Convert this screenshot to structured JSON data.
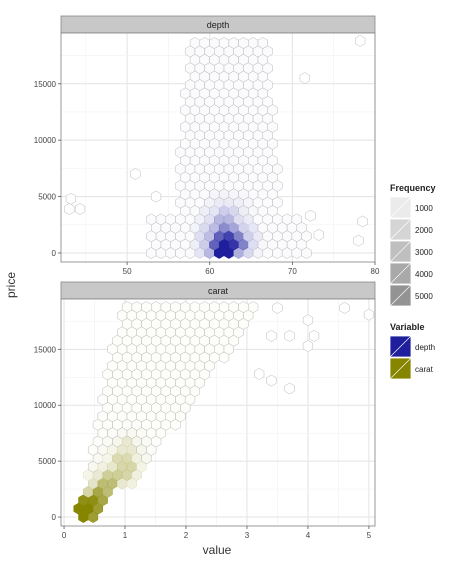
{
  "chart_data": {
    "type": "heatmap",
    "subtype": "hexbin",
    "facets": [
      {
        "name": "depth",
        "color": "#1f1f9e",
        "xlim": [
          42,
          80
        ],
        "ylim": [
          -800,
          19500
        ],
        "xticks": [
          50,
          60,
          70,
          80
        ],
        "yticks": [
          0,
          5000,
          10000,
          15000
        ],
        "yticklabels": [
          "0",
          "5000",
          "10000",
          "15000"
        ],
        "hot_cells": [
          {
            "x": 61.7,
            "y": 400,
            "count": 5000
          },
          {
            "x": 62.2,
            "y": 400,
            "count": 4500
          },
          {
            "x": 61.2,
            "y": 1200,
            "count": 3500
          },
          {
            "x": 62.2,
            "y": 1200,
            "count": 4200
          },
          {
            "x": 63.2,
            "y": 1200,
            "count": 2800
          },
          {
            "x": 61.7,
            "y": 2000,
            "count": 2600
          },
          {
            "x": 62.7,
            "y": 2000,
            "count": 2000
          },
          {
            "x": 60.7,
            "y": 2000,
            "count": 1300
          },
          {
            "x": 61.2,
            "y": 2800,
            "count": 1500
          },
          {
            "x": 62.2,
            "y": 2800,
            "count": 1600
          },
          {
            "x": 61.7,
            "y": 3600,
            "count": 1100
          },
          {
            "x": 62.7,
            "y": 3600,
            "count": 900
          }
        ],
        "outliers": [
          {
            "x": 43.2,
            "y": 4800
          },
          {
            "x": 43.0,
            "y": 3900
          },
          {
            "x": 44.3,
            "y": 3900
          },
          {
            "x": 51.0,
            "y": 7000
          },
          {
            "x": 53.5,
            "y": 5000
          },
          {
            "x": 78.2,
            "y": 18800
          },
          {
            "x": 78.5,
            "y": 2800
          },
          {
            "x": 78.0,
            "y": 1100
          },
          {
            "x": 71.5,
            "y": 15500
          },
          {
            "x": 72.2,
            "y": 3300
          },
          {
            "x": 73.2,
            "y": 1600
          }
        ]
      },
      {
        "name": "carat",
        "color": "#858500",
        "xlim": [
          -0.05,
          5.1
        ],
        "ylim": [
          -800,
          19500
        ],
        "xticks": [
          0,
          1,
          2,
          3,
          4,
          5
        ],
        "yticks": [
          0,
          5000,
          10000,
          15000
        ],
        "yticklabels": [
          "0",
          "5000",
          "10000",
          "15000"
        ],
        "hot_cells": [
          {
            "x": 0.3,
            "y": 500,
            "count": 5000
          },
          {
            "x": 0.38,
            "y": 1100,
            "count": 4600
          },
          {
            "x": 0.45,
            "y": 500,
            "count": 4000
          },
          {
            "x": 0.58,
            "y": 1100,
            "count": 3000
          },
          {
            "x": 0.58,
            "y": 1700,
            "count": 3600
          },
          {
            "x": 0.72,
            "y": 2700,
            "count": 2700
          },
          {
            "x": 0.85,
            "y": 3600,
            "count": 2000
          },
          {
            "x": 1.0,
            "y": 4300,
            "count": 1700
          },
          {
            "x": 1.0,
            "y": 5200,
            "count": 1500
          },
          {
            "x": 1.05,
            "y": 6100,
            "count": 900
          },
          {
            "x": 0.85,
            "y": 4600,
            "count": 1000
          },
          {
            "x": 0.72,
            "y": 3600,
            "count": 1100
          }
        ],
        "outliers": [
          {
            "x": 4.6,
            "y": 18700
          },
          {
            "x": 4.0,
            "y": 17600
          },
          {
            "x": 3.5,
            "y": 18700
          },
          {
            "x": 3.4,
            "y": 16200
          },
          {
            "x": 3.7,
            "y": 16200
          },
          {
            "x": 4.1,
            "y": 16200
          },
          {
            "x": 4.0,
            "y": 15300
          },
          {
            "x": 5.0,
            "y": 18100
          },
          {
            "x": 3.2,
            "y": 12800
          },
          {
            "x": 3.4,
            "y": 12200
          },
          {
            "x": 3.7,
            "y": 11500
          }
        ]
      }
    ],
    "xlabel": "value",
    "ylabel": "price",
    "legend": {
      "placement": "right",
      "frequency": {
        "title": "Frequency",
        "breaks": [
          "1000",
          "2000",
          "3000",
          "4000",
          "5000"
        ]
      },
      "variable": {
        "title": "Variable",
        "entries": [
          {
            "label": "depth",
            "color": "#1f1f9e"
          },
          {
            "label": "carat",
            "color": "#858500"
          }
        ]
      }
    },
    "grid": true
  }
}
